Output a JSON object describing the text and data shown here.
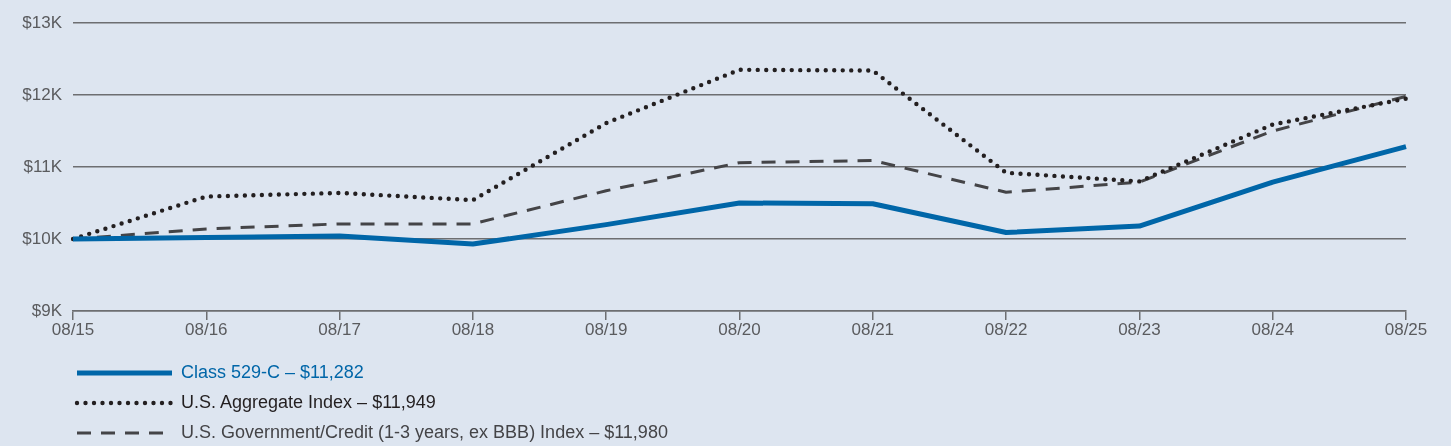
{
  "chart_data": {
    "type": "line",
    "categories": [
      "08/15",
      "08/16",
      "08/17",
      "08/18",
      "08/19",
      "08/20",
      "08/21",
      "08/22",
      "08/23",
      "08/24",
      "08/25"
    ],
    "series": [
      {
        "name": "Class 529-C – $11,282",
        "color": "#0066a8",
        "line_style": "solid",
        "values": [
          10000,
          10020,
          10040,
          9930,
          10200,
          10500,
          10490,
          10090,
          10180,
          10790,
          11282
        ]
      },
      {
        "name": "U.S. Aggregate Index – $11,949",
        "color": "#231f20",
        "line_style": "dotted",
        "values": [
          10000,
          10590,
          10640,
          10540,
          11610,
          12350,
          12340,
          10920,
          10800,
          11590,
          11949
        ]
      },
      {
        "name": "U.S. Government/Credit (1-3 years, ex BBB) Index – $11,980",
        "color": "#444447",
        "line_style": "dashed",
        "values": [
          10000,
          10140,
          10210,
          10210,
          10670,
          11060,
          11090,
          10650,
          10790,
          11500,
          11980
        ]
      }
    ],
    "ylim": [
      9000,
      13000
    ],
    "yticks": [
      {
        "value": 9000,
        "label": "$9K"
      },
      {
        "value": 10000,
        "label": "$10K"
      },
      {
        "value": 11000,
        "label": "$11K"
      },
      {
        "value": 12000,
        "label": "$12K"
      },
      {
        "value": 13000,
        "label": "$13K"
      }
    ],
    "grid": "y",
    "legend": "bottom left"
  }
}
